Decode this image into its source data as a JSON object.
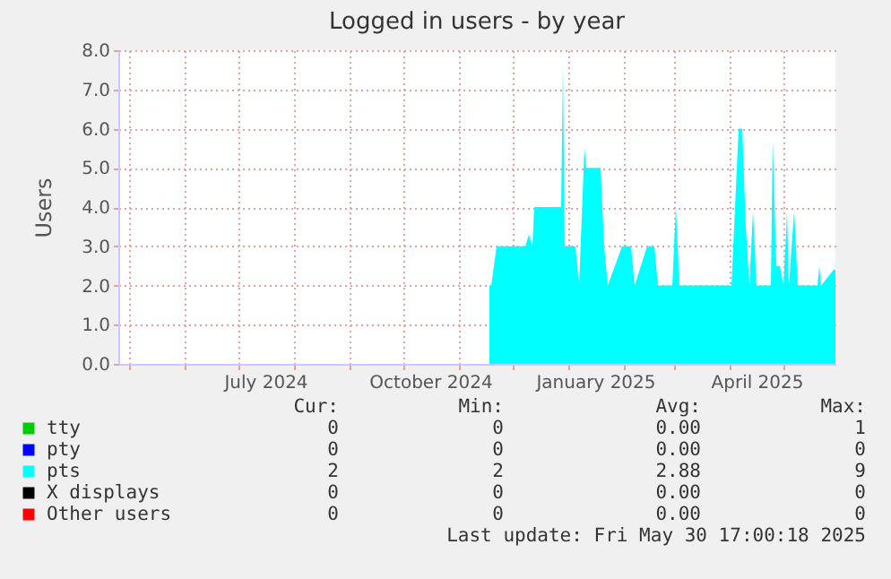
{
  "chart_data": {
    "type": "area",
    "title": "Logged in users - by year",
    "ylabel": "Users",
    "xlim": [
      "2024-04-25",
      "2025-05-30"
    ],
    "xticks": [
      {
        "value": "2024-05-01",
        "label": null
      },
      {
        "value": "2024-06-01",
        "label": null
      },
      {
        "value": "2024-07-01",
        "label": null
      },
      {
        "value": "2024-07-16",
        "label": "July 2024"
      },
      {
        "value": "2024-08-01",
        "label": null
      },
      {
        "value": "2024-09-01",
        "label": null
      },
      {
        "value": "2024-10-01",
        "label": null
      },
      {
        "value": "2024-10-16",
        "label": "October 2024"
      },
      {
        "value": "2024-11-01",
        "label": null
      },
      {
        "value": "2024-12-01",
        "label": null
      },
      {
        "value": "2025-01-01",
        "label": null
      },
      {
        "value": "2025-01-16",
        "label": "January 2025"
      },
      {
        "value": "2025-02-01",
        "label": null
      },
      {
        "value": "2025-03-01",
        "label": null
      },
      {
        "value": "2025-04-01",
        "label": null
      },
      {
        "value": "2025-04-16",
        "label": "April 2025"
      },
      {
        "value": "2025-05-01",
        "label": null
      }
    ],
    "ylim": [
      0,
      8
    ],
    "yticks": [
      {
        "value": 0,
        "label": "0.0"
      },
      {
        "value": 1,
        "label": "1.0"
      },
      {
        "value": 2,
        "label": "2.0"
      },
      {
        "value": 3,
        "label": "3.0"
      },
      {
        "value": 4,
        "label": "4.0"
      },
      {
        "value": 5,
        "label": "5.0"
      },
      {
        "value": 6,
        "label": "6.0"
      },
      {
        "value": 7,
        "label": "7.0"
      },
      {
        "value": 8,
        "label": "8.0"
      }
    ],
    "grid": true,
    "legend": "bottom",
    "series": [
      {
        "name": "tty",
        "color": "#00cc00"
      },
      {
        "name": "pty",
        "color": "#0000ff"
      },
      {
        "name": "pts",
        "color": "#00ffff",
        "x": [
          "2024-11-18",
          "2024-11-19",
          "2024-11-22",
          "2024-12-08",
          "2024-12-10",
          "2024-12-12",
          "2024-12-13",
          "2024-12-27",
          "2024-12-28",
          "2024-12-29",
          "2024-12-30",
          "2025-01-05",
          "2025-01-07",
          "2025-01-10",
          "2025-01-11",
          "2025-01-19",
          "2025-01-21",
          "2025-01-23",
          "2025-01-31",
          "2025-02-05",
          "2025-02-07",
          "2025-02-14",
          "2025-02-18",
          "2025-02-20",
          "2025-02-28",
          "2025-03-02",
          "2025-03-04",
          "2025-04-02",
          "2025-04-06",
          "2025-04-08",
          "2025-04-10",
          "2025-04-12",
          "2025-04-14",
          "2025-04-16",
          "2025-04-24",
          "2025-04-25",
          "2025-04-27",
          "2025-04-29",
          "2025-05-01",
          "2025-05-03",
          "2025-05-04",
          "2025-05-07",
          "2025-05-09",
          "2025-05-20",
          "2025-05-21",
          "2025-05-22",
          "2025-05-29",
          "2025-05-30"
        ],
        "values": [
          2,
          2,
          3,
          3,
          3.3,
          3,
          4,
          4,
          4,
          7.6,
          3,
          3,
          2,
          5.5,
          5,
          5,
          3,
          2,
          3,
          3,
          2,
          3,
          3,
          2,
          2,
          4,
          2,
          2,
          6,
          6,
          3.5,
          2,
          3.9,
          2,
          2,
          5.7,
          2.5,
          2.5,
          2,
          3.9,
          2,
          3.9,
          2,
          2,
          2.5,
          2,
          2.4,
          2.4
        ]
      },
      {
        "name": "X displays",
        "color": "#000000"
      },
      {
        "name": "Other users",
        "color": "#ff0000"
      }
    ],
    "annotations": [
      "Cur:",
      "Min:",
      "Avg:",
      "Max:",
      "0",
      "0",
      "0.00",
      "1",
      "0",
      "0",
      "0.00",
      "0",
      "2",
      "2",
      "2.88",
      "9",
      "0",
      "0",
      "0.00",
      "0",
      "0",
      "0",
      "0.00",
      "0",
      "Last update: Fri May 30 17:00:18 2025"
    ]
  }
}
